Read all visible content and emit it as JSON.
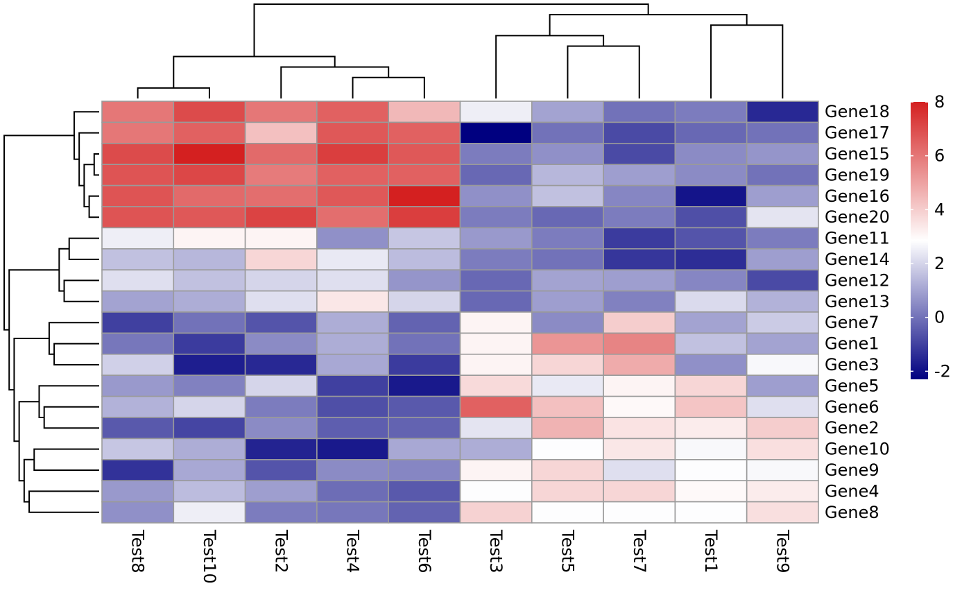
{
  "chart_data": {
    "type": "heatmap",
    "title": "",
    "xlabel": "",
    "ylabel": "",
    "columns": [
      "Test8",
      "Test10",
      "Test2",
      "Test4",
      "Test6",
      "Test3",
      "Test5",
      "Test7",
      "Test1",
      "Test9"
    ],
    "rows": [
      "Gene18",
      "Gene17",
      "Gene15",
      "Gene19",
      "Gene16",
      "Gene20",
      "Gene11",
      "Gene14",
      "Gene12",
      "Gene13",
      "Gene7",
      "Gene1",
      "Gene3",
      "Gene5",
      "Gene6",
      "Gene2",
      "Gene10",
      "Gene9",
      "Gene4",
      "Gene8"
    ],
    "values": [
      [
        6.0,
        7.0,
        6.0,
        6.5,
        4.5,
        2.5,
        1.0,
        0.0,
        0.2,
        -1.5
      ],
      [
        6.0,
        6.5,
        4.3,
        6.7,
        6.5,
        -2.3,
        0.0,
        -0.8,
        -0.2,
        0.0
      ],
      [
        7.0,
        8.0,
        6.3,
        7.3,
        6.7,
        0.2,
        0.6,
        -0.8,
        0.5,
        0.7
      ],
      [
        6.8,
        7.1,
        5.9,
        6.5,
        6.5,
        -0.2,
        1.4,
        0.9,
        0.5,
        0.0
      ],
      [
        6.8,
        6.3,
        6.2,
        6.7,
        8.0,
        0.6,
        1.6,
        0.4,
        -1.9,
        0.9
      ],
      [
        6.8,
        6.7,
        7.2,
        6.2,
        7.3,
        0.2,
        -0.2,
        0.2,
        -0.7,
        2.3
      ],
      [
        2.5,
        3.1,
        3.1,
        0.6,
        1.7,
        0.8,
        0.2,
        -1.1,
        -0.6,
        0.2
      ],
      [
        1.6,
        1.4,
        3.8,
        2.4,
        1.5,
        0.2,
        0.0,
        -1.2,
        -1.4,
        0.9
      ],
      [
        2.2,
        1.6,
        2.0,
        2.2,
        0.7,
        -0.2,
        1.0,
        0.9,
        0.4,
        -0.8
      ],
      [
        1.0,
        1.2,
        2.2,
        3.4,
        2.0,
        -0.2,
        0.9,
        0.3,
        2.1,
        1.3
      ],
      [
        -1.0,
        0.0,
        -0.6,
        1.2,
        -0.3,
        3.1,
        0.5,
        4.0,
        1.0,
        1.8
      ],
      [
        0.1,
        -1.1,
        0.5,
        1.2,
        0.0,
        3.1,
        5.3,
        5.7,
        1.6,
        1.0
      ],
      [
        1.9,
        -1.7,
        -1.5,
        1.1,
        -1.1,
        3.1,
        3.8,
        4.8,
        0.6,
        2.7
      ],
      [
        0.8,
        0.3,
        2.0,
        -1.0,
        -1.8,
        3.7,
        2.4,
        3.1,
        3.8,
        0.9
      ],
      [
        1.3,
        2.0,
        0.2,
        -0.7,
        -0.5,
        6.5,
        4.3,
        3.0,
        4.2,
        2.2
      ],
      [
        -0.5,
        -0.9,
        0.5,
        -0.4,
        -0.3,
        2.3,
        4.6,
        3.5,
        3.3,
        4.0
      ],
      [
        1.7,
        1.2,
        -1.6,
        -1.8,
        1.1,
        1.2,
        2.8,
        3.4,
        2.7,
        3.6
      ],
      [
        -1.3,
        1.1,
        -0.6,
        0.5,
        0.4,
        3.1,
        3.8,
        2.2,
        2.8,
        2.7
      ],
      [
        0.8,
        1.5,
        0.9,
        -0.1,
        -0.5,
        2.8,
        3.8,
        3.8,
        3.0,
        3.3
      ],
      [
        0.6,
        2.5,
        0.2,
        0.1,
        -0.3,
        3.9,
        2.8,
        2.8,
        2.8,
        3.6
      ]
    ],
    "colorbar": {
      "min": -2.3,
      "max": 8.0,
      "ticks": [
        "8",
        "6",
        "4",
        "2",
        "0",
        "-2"
      ],
      "tick_values": [
        8,
        6,
        4,
        2,
        0,
        -2
      ],
      "colors": [
        "#000080",
        "#ffffff",
        "#d42020"
      ]
    },
    "col_dendrogram": [
      [
        1,
        2
      ],
      [
        4,
        5
      ],
      [
        3,
        -2
      ],
      [
        -1,
        -3
      ],
      [
        7,
        8
      ],
      [
        6,
        -5
      ],
      [
        9,
        10
      ],
      [
        -6,
        -7
      ],
      [
        -4,
        -8
      ]
    ],
    "row_dendrogram": [
      [
        3,
        4
      ],
      [
        5,
        6
      ],
      [
        -1,
        -2
      ],
      [
        2,
        -3
      ],
      [
        1,
        -4
      ],
      [
        7,
        8
      ],
      [
        9,
        10
      ],
      [
        -6,
        -7
      ],
      [
        12,
        13
      ],
      [
        11,
        -9
      ],
      [
        15,
        16
      ],
      [
        14,
        -11
      ],
      [
        17,
        18
      ],
      [
        19,
        20
      ],
      [
        -13,
        -14
      ],
      [
        -12,
        -15
      ],
      [
        -10,
        -16
      ],
      [
        -8,
        -17
      ],
      [
        -5,
        -18
      ]
    ],
    "legend": "right"
  }
}
